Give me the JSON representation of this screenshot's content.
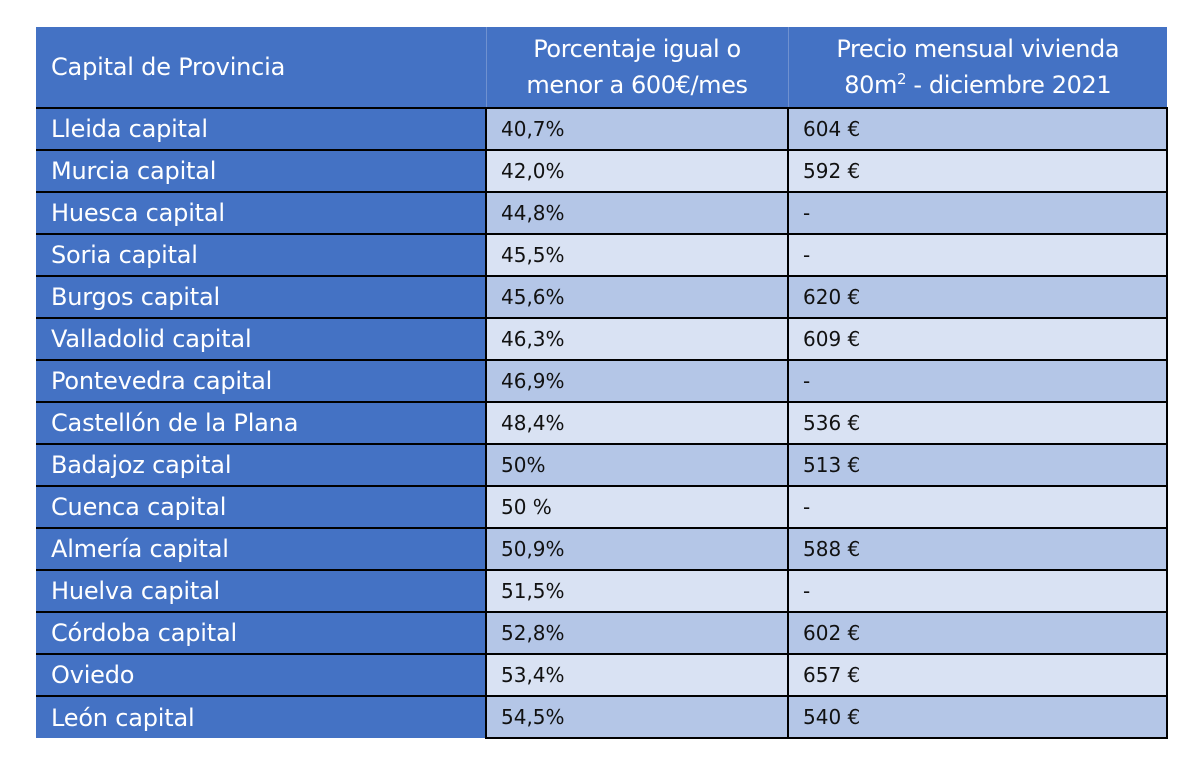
{
  "table": {
    "headers": {
      "col1": "Capital de Provincia",
      "col2_line1": "Porcentaje igual o",
      "col2_line2": "menor a 600€/mes",
      "col3_line1": "Precio mensual vivienda",
      "col3_line2_prefix": "80m",
      "col3_line2_sup": "2",
      "col3_line2_suffix": " - diciembre 2021"
    },
    "rows": [
      {
        "city": "Lleida capital",
        "percentage": "40,7%",
        "price": "604 €"
      },
      {
        "city": "Murcia capital",
        "percentage": "42,0%",
        "price": "592 €"
      },
      {
        "city": "Huesca capital",
        "percentage": "44,8%",
        "price": "-"
      },
      {
        "city": "Soria capital",
        "percentage": "45,5%",
        "price": "-"
      },
      {
        "city": "Burgos capital",
        "percentage": "45,6%",
        "price": "620 €"
      },
      {
        "city": "Valladolid capital",
        "percentage": "46,3%",
        "price": "609 €"
      },
      {
        "city": "Pontevedra capital",
        "percentage": "46,9%",
        "price": "-"
      },
      {
        "city": "Castellón de la Plana",
        "percentage": "48,4%",
        "price": "536 €"
      },
      {
        "city": "Badajoz capital",
        "percentage": "50%",
        "price": "513 €"
      },
      {
        "city": "Cuenca capital",
        "percentage": "50 %",
        "price": "-"
      },
      {
        "city": "Almería capital",
        "percentage": "50,9%",
        "price": "588 €"
      },
      {
        "city": "Huelva capital",
        "percentage": "51,5%",
        "price": "-"
      },
      {
        "city": "Córdoba capital",
        "percentage": "52,8%",
        "price": "602 €"
      },
      {
        "city": "Oviedo",
        "percentage": "53,4%",
        "price": "657 €"
      },
      {
        "city": "León capital",
        "percentage": "54,5%",
        "price": "540 €"
      }
    ]
  },
  "colors": {
    "header_bg": "#4472C4",
    "row_odd_bg": "#B4C6E7",
    "row_even_bg": "#D9E2F3",
    "border": "#000000",
    "header_text": "#FFFFFF"
  }
}
